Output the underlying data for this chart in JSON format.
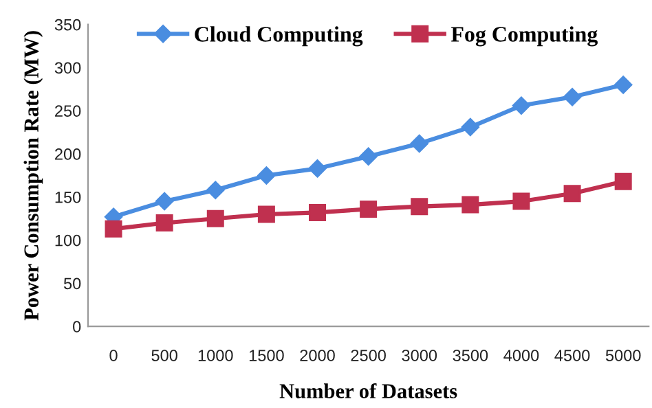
{
  "chart_data": {
    "type": "line",
    "xlabel": "Number of Datasets",
    "ylabel": "Power Consumption Rate (MW)",
    "categories": [
      "0",
      "500",
      "1000",
      "1500",
      "2000",
      "2500",
      "3000",
      "3500",
      "4000",
      "4500",
      "5000"
    ],
    "series": [
      {
        "name": "Cloud Computing",
        "color": "#4a8de0",
        "marker": "diamond",
        "values": [
          127,
          145,
          158,
          175,
          183,
          197,
          212,
          231,
          256,
          266,
          280
        ]
      },
      {
        "name": "Fog Computing",
        "color": "#c0304f",
        "marker": "square",
        "values": [
          113,
          120,
          125,
          130,
          132,
          136,
          139,
          141,
          145,
          154,
          168
        ]
      }
    ],
    "ylim": [
      0,
      350
    ],
    "yticks": [
      0,
      50,
      100,
      150,
      200,
      250,
      300,
      350
    ],
    "grid": false,
    "legend": "top"
  }
}
